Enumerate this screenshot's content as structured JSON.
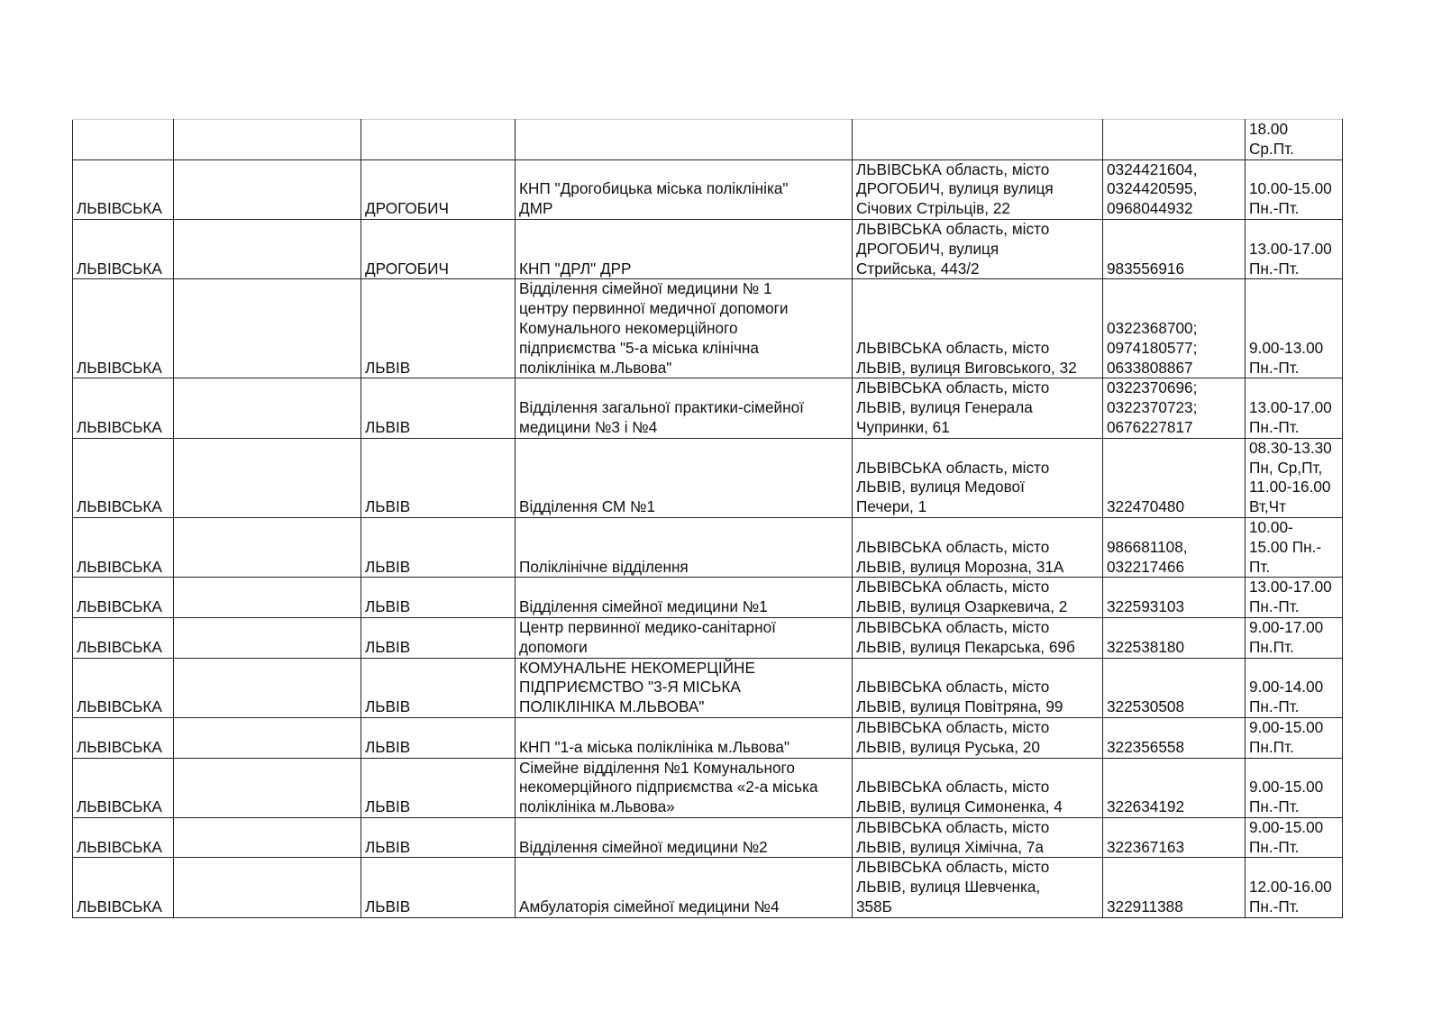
{
  "table": {
    "rows": [
      [
        "",
        "",
        "",
        "",
        "",
        "",
        "18.00\nСр.Пт."
      ],
      [
        "ЛЬВІВСЬКА",
        "",
        "ДРОГОБИЧ",
        "КНП \"Дрогобицька міська поліклініка\"\nДМР",
        "ЛЬВІВСЬКА область, місто\nДРОГОБИЧ, вулиця вулиця\nСічових Стрільців, 22",
        "0324421604,\n0324420595,\n0968044932",
        "10.00-15.00\nПн.-Пт."
      ],
      [
        "ЛЬВІВСЬКА",
        "",
        "ДРОГОБИЧ",
        "КНП \"ДРЛ\" ДРР",
        "ЛЬВІВСЬКА область, місто\nДРОГОБИЧ, вулиця\nСтрийська, 443/2",
        "983556916",
        "13.00-17.00\nПн.-Пт."
      ],
      [
        "ЛЬВІВСЬКА",
        "",
        "ЛЬВІВ",
        "Відділення сімейної медицини № 1\nцентру первинної медичної допомоги\nКомунального некомерційного\nпідприємства \"5-а міська клінічна\nполіклініка м.Львова\"",
        "ЛЬВІВСЬКА область, місто\nЛЬВІВ, вулиця Виговського, 32",
        "0322368700;\n0974180577;\n0633808867",
        "9.00-13.00\nПн.-Пт."
      ],
      [
        "ЛЬВІВСЬКА",
        "",
        "ЛЬВІВ",
        "Відділення загальної практики-сімейної\nмедицини №3 і №4",
        "ЛЬВІВСЬКА область, місто\nЛЬВІВ, вулиця Генерала\nЧупринки, 61",
        "0322370696;\n0322370723;\n0676227817",
        "13.00-17.00\nПн.-Пт."
      ],
      [
        "ЛЬВІВСЬКА",
        "",
        "ЛЬВІВ",
        "Відділення СМ №1",
        "ЛЬВІВСЬКА область, місто\nЛЬВІВ, вулиця Медової\nПечери, 1",
        "322470480",
        "08.30-13.30\nПн, Ср,Пт,\n11.00-16.00\nВт,Чт"
      ],
      [
        "ЛЬВІВСЬКА",
        "",
        "ЛЬВІВ",
        "Поліклінічне відділення",
        "ЛЬВІВСЬКА область, місто\nЛЬВІВ, вулиця Морозна, 31А",
        "986681108,\n032217466",
        "10.00-\n15.00 Пн.-\nПт."
      ],
      [
        "ЛЬВІВСЬКА",
        "",
        "ЛЬВІВ",
        "Відділення сімейної медицини №1",
        "ЛЬВІВСЬКА область, місто\nЛЬВІВ, вулиця Озаркевича, 2",
        "322593103",
        "13.00-17.00\nПн.-Пт."
      ],
      [
        "ЛЬВІВСЬКА",
        "",
        "ЛЬВІВ",
        "Центр первинної медико-санітарної\nдопомоги",
        "ЛЬВІВСЬКА область, місто\nЛЬВІВ, вулиця Пекарська, 69б",
        "322538180",
        "9.00-17.00\nПн.Пт."
      ],
      [
        "ЛЬВІВСЬКА",
        "",
        "ЛЬВІВ",
        "КОМУНАЛЬНЕ НЕКОМЕРЦІЙНЕ\nПІДПРИЄМСТВО \"3-Я МІСЬКА\nПОЛІКЛІНІКА М.ЛЬВОВА\"",
        "ЛЬВІВСЬКА область, місто\nЛЬВІВ, вулиця Повітряна, 99",
        "322530508",
        "9.00-14.00\nПн.-Пт."
      ],
      [
        "ЛЬВІВСЬКА",
        "",
        "ЛЬВІВ",
        "КНП \"1-а міська поліклініка м.Львова\"",
        "ЛЬВІВСЬКА область, місто\nЛЬВІВ, вулиця Руська, 20",
        "322356558",
        "9.00-15.00\nПн.Пт."
      ],
      [
        "ЛЬВІВСЬКА",
        "",
        "ЛЬВІВ",
        "Сімейне відділення №1 Комунального\nнекомерційного підприємства «2-а міська\nполіклініка м.Львова»",
        "ЛЬВІВСЬКА область, місто\nЛЬВІВ, вулиця Симоненка, 4",
        "322634192",
        "9.00-15.00\nПн.-Пт."
      ],
      [
        "ЛЬВІВСЬКА",
        "",
        "ЛЬВІВ",
        "Відділення сімейної медицини №2",
        "ЛЬВІВСЬКА область, місто\nЛЬВІВ, вулиця Хімічна, 7а",
        "322367163",
        "9.00-15.00\nПн.-Пт."
      ],
      [
        "ЛЬВІВСЬКА",
        "",
        "ЛЬВІВ",
        "Амбулаторія сімейної медицини №4",
        "ЛЬВІВСЬКА область, місто\nЛЬВІВ, вулиця Шевченка,\n358Б",
        "322911388",
        "12.00-16.00\nПн.-Пт."
      ]
    ]
  }
}
